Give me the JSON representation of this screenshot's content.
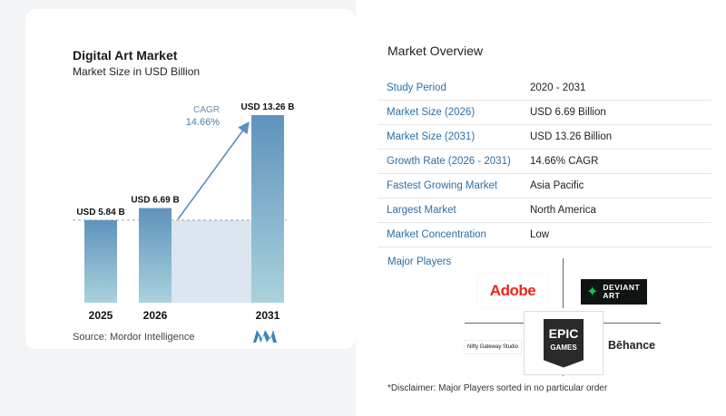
{
  "chart_data": {
    "type": "bar",
    "title": "Digital Art Market",
    "subtitle": "Market Size in USD Billion",
    "categories": [
      "2025",
      "2026",
      "2031"
    ],
    "values": [
      5.84,
      6.69,
      13.26
    ],
    "data_labels": [
      "USD 5.84 B",
      "USD 6.69 B",
      "USD 13.26 B"
    ],
    "annotation": {
      "label": "CAGR",
      "value": "14.66%"
    },
    "reference_line": {
      "value": 5.84,
      "style": "dashed"
    },
    "ylim": [
      0,
      14
    ],
    "xlabel": "",
    "ylabel": "",
    "grid": false,
    "colors": {
      "bar_top": "#5f93bd",
      "bar_bottom": "#a9d2dc",
      "shade": "#dbe6f0",
      "arrow": "#5b8fbf"
    }
  },
  "source": "Source:  Mordor Intelligence",
  "overview": {
    "title": "Market Overview",
    "rows": [
      {
        "label": "Study Period",
        "value": "2020 - 2031"
      },
      {
        "label": "Market Size (2026)",
        "value": "USD 6.69 Billion"
      },
      {
        "label": "Market Size (2031)",
        "value": "USD 13.26 Billion"
      },
      {
        "label": "Growth Rate (2026 - 2031)",
        "value": "14.66% CAGR"
      },
      {
        "label": "Fastest Growing Market",
        "value": "Asia Pacific"
      },
      {
        "label": "Largest Market",
        "value": "North America"
      },
      {
        "label": "Market Concentration",
        "value": "Low"
      }
    ]
  },
  "players": {
    "title": "Major Players",
    "adobe": "Adobe",
    "deviantart_line1": "DEVIANT",
    "deviantart_line2": "ART",
    "epic_line1": "EPIC",
    "epic_line2": "GAMES",
    "nifty": "Nifty Gateway Studio",
    "behance": "Bēhance"
  },
  "disclaimer": "*Disclaimer: Major Players sorted in no particular order",
  "colors": {
    "accent": "#2b6fa8"
  }
}
